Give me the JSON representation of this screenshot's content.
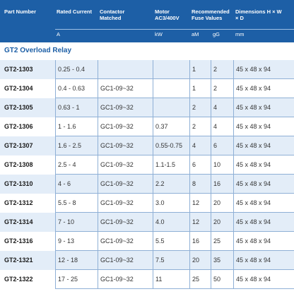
{
  "header": [
    "Part Number",
    "Rated Current",
    "Contactor Matched",
    "Motor AC3/400V",
    "Recommended Fuse Values",
    "Dimensions H × W × D"
  ],
  "units": [
    "A",
    "kW",
    "aM",
    "gG",
    "mm"
  ],
  "section": "GT2 Overload Relay",
  "rows": [
    [
      "GT2-1303",
      "0.25 - 0.4",
      null,
      null,
      "1",
      "2",
      "45 x 48 x 94"
    ],
    [
      "GT2-1304",
      "0.4 - 0.63",
      "GC1-09~32",
      null,
      "1",
      "2",
      "45 x 48 x 94"
    ],
    [
      "GT2-1305",
      "0.63 - 1",
      "GC1-09~32",
      null,
      "2",
      "4",
      "45 x 48 x 94"
    ],
    [
      "GT2-1306",
      "1 - 1.6",
      "GC1-09~32",
      "0.37",
      "2",
      "4",
      "45 x 48 x 94"
    ],
    [
      "GT2-1307",
      "1.6 - 2.5",
      "GC1-09~32",
      "0.55-0.75",
      "4",
      "6",
      "45 x 48 x 94"
    ],
    [
      "GT2-1308",
      "2.5 - 4",
      "GC1-09~32",
      "1.1-1.5",
      "6",
      "10",
      "45 x 48 x 94"
    ],
    [
      "GT2-1310",
      "4 - 6",
      "GC1-09~32",
      "2.2",
      "8",
      "16",
      "45 x 48 x 94"
    ],
    [
      "GT2-1312",
      "5.5 - 8",
      "GC1-09~32",
      "3.0",
      "12",
      "20",
      "45 x 48 x 94"
    ],
    [
      "GT2-1314",
      "7 - 10",
      "GC1-09~32",
      "4.0",
      "12",
      "20",
      "45 x 48 x 94"
    ],
    [
      "GT2-1316",
      "9 - 13",
      "GC1-09~32",
      "5.5",
      "16",
      "25",
      "45 x 48 x 94"
    ],
    [
      "GT2-1321",
      "12 - 18",
      "GC1-09~32",
      "7.5",
      "20",
      "35",
      "45 x 48 x 94"
    ],
    [
      "GT2-1322",
      "17 - 25",
      "GC1-09~32",
      "11",
      "25",
      "50",
      "45 x 48 x 94"
    ]
  ]
}
